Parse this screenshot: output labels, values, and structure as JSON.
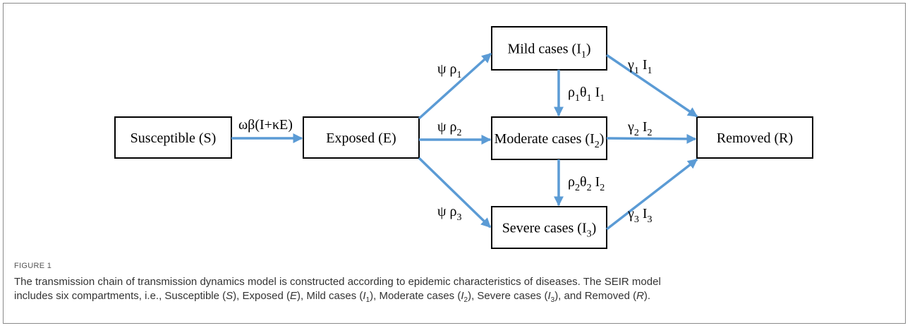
{
  "figure": {
    "nodes": [
      {
        "label": [
          {
            "text": "Susceptible (S)"
          }
        ]
      },
      {
        "label": [
          {
            "text": "Exposed (E)"
          }
        ]
      },
      {
        "label": [
          {
            "text": "Mild cases (I"
          },
          {
            "sub": "1"
          },
          {
            "text": ")"
          }
        ]
      },
      {
        "label": [
          {
            "text": "Moderate cases (I"
          },
          {
            "sub": "2"
          },
          {
            "text": ")"
          }
        ]
      },
      {
        "label": [
          {
            "text": "Severe cases (I"
          },
          {
            "sub": "3"
          },
          {
            "text": ")"
          }
        ]
      },
      {
        "label": [
          {
            "text": "Removed (R)"
          }
        ]
      }
    ],
    "edges": [
      {
        "label": [
          {
            "text": "ωβ(I+κE)"
          }
        ]
      },
      {
        "label": [
          {
            "text": "ψ ρ"
          },
          {
            "sub": "1"
          }
        ]
      },
      {
        "label": [
          {
            "text": "ψ ρ"
          },
          {
            "sub": "2"
          }
        ]
      },
      {
        "label": [
          {
            "text": "ψ ρ"
          },
          {
            "sub": "3"
          }
        ]
      },
      {
        "label": [
          {
            "text": "ρ"
          },
          {
            "sub": "1"
          },
          {
            "text": "θ"
          },
          {
            "sub": "1"
          },
          {
            "text": " I"
          },
          {
            "sub": "1"
          }
        ]
      },
      {
        "label": [
          {
            "text": "ρ"
          },
          {
            "sub": "2"
          },
          {
            "text": "θ"
          },
          {
            "sub": "2"
          },
          {
            "text": " I"
          },
          {
            "sub": "2"
          }
        ]
      },
      {
        "label": [
          {
            "text": "γ"
          },
          {
            "sub": "1"
          },
          {
            "text": " I"
          },
          {
            "sub": "1"
          }
        ]
      },
      {
        "label": [
          {
            "text": "γ"
          },
          {
            "sub": "2"
          },
          {
            "text": " I"
          },
          {
            "sub": "2"
          }
        ]
      },
      {
        "label": [
          {
            "text": "γ"
          },
          {
            "sub": "3"
          },
          {
            "text": " I"
          },
          {
            "sub": "3"
          }
        ]
      }
    ]
  },
  "caption": {
    "figure_label": "FIGURE 1",
    "lines": [
      [
        {
          "text": "The transmission chain of transmission dynamics model is constructed according to epidemic characteristics of diseases. The SEIR model"
        }
      ],
      [
        {
          "text": "includes six compartments, i.e., Susceptible ("
        },
        {
          "italic": "S"
        },
        {
          "text": "), Exposed ("
        },
        {
          "italic": "E"
        },
        {
          "text": "), Mild cases ("
        },
        {
          "italic": "I"
        },
        {
          "sub": "1"
        },
        {
          "text": "), Moderate cases ("
        },
        {
          "italic": "I"
        },
        {
          "sub": "2"
        },
        {
          "text": "), Severe cases ("
        },
        {
          "italic": "I"
        },
        {
          "sub": "3"
        },
        {
          "text": "), and Removed ("
        },
        {
          "italic": "R"
        },
        {
          "text": ")."
        }
      ]
    ]
  }
}
